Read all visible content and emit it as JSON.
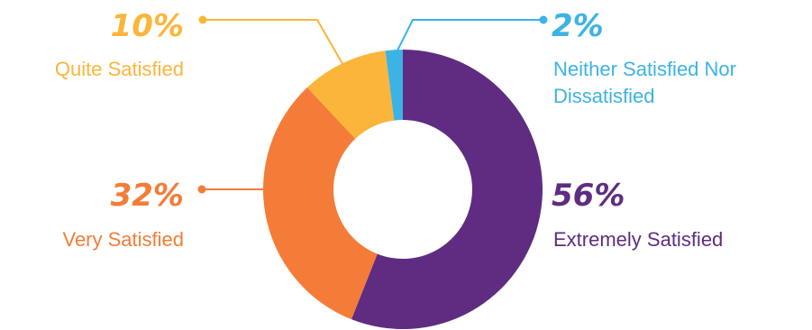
{
  "chart_data": {
    "type": "pie",
    "title": "",
    "slices": [
      {
        "label": "Extremely Satisfied",
        "value": 56,
        "display_value": "56%",
        "color": "#5f2c82"
      },
      {
        "label": "Very Satisfied",
        "value": 32,
        "display_value": "32%",
        "color": "#f47c38"
      },
      {
        "label": "Quite Satisfied",
        "value": 10,
        "display_value": "10%",
        "color": "#fbb53a"
      },
      {
        "label": "Neither Satisfied Nor Dissatisfied",
        "value": 2,
        "display_value": "2%",
        "color": "#3cb3e4"
      }
    ],
    "labels": {
      "extremely": {
        "value": "56%",
        "label": "Extremely Satisfied"
      },
      "very": {
        "value": "32%",
        "label": "Very Satisfied"
      },
      "quite": {
        "value": "10%",
        "label": "Quite Satisfied"
      },
      "neither": {
        "value": "2%",
        "label_line1": "Neither Satisfied Nor",
        "label_line2": "Dissatisfied"
      }
    }
  }
}
